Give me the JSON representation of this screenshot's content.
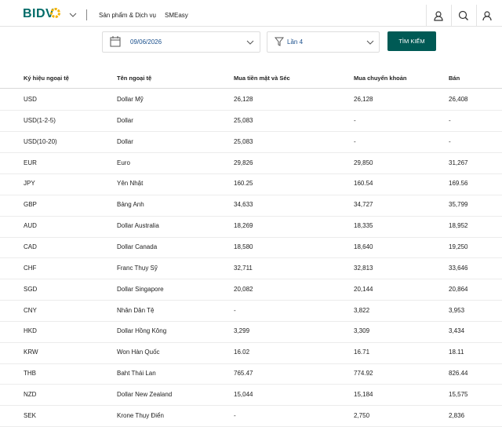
{
  "header": {
    "logo": "BIDV",
    "nav": [
      "Sản phẩm & Dịch vụ",
      "SMEasy"
    ]
  },
  "filters": {
    "date": "09/06/2026",
    "round": "Lần 4",
    "button": "TÌM KIẾM"
  },
  "table": {
    "columns": [
      "Ký hiệu ngoại tệ",
      "Tên ngoại tệ",
      "Mua tiền mặt và Séc",
      "Mua chuyển khoản",
      "Bán"
    ],
    "rows": [
      [
        "USD",
        "Dollar Mỹ",
        "26,128",
        "26,128",
        "26,408"
      ],
      [
        "USD(1-2-5)",
        "Dollar",
        "25,083",
        "-",
        "-"
      ],
      [
        "USD(10-20)",
        "Dollar",
        "25,083",
        "-",
        "-"
      ],
      [
        "EUR",
        "Euro",
        "29,826",
        "29,850",
        "31,267"
      ],
      [
        "JPY",
        "Yên Nhật",
        "160.25",
        "160.54",
        "169.56"
      ],
      [
        "GBP",
        "Bảng Anh",
        "34,633",
        "34,727",
        "35,799"
      ],
      [
        "AUD",
        "Dollar Australia",
        "18,269",
        "18,335",
        "18,952"
      ],
      [
        "CAD",
        "Dollar Canada",
        "18,580",
        "18,640",
        "19,250"
      ],
      [
        "CHF",
        "Franc Thụy Sỹ",
        "32,711",
        "32,813",
        "33,646"
      ],
      [
        "SGD",
        "Dollar Singapore",
        "20,082",
        "20,144",
        "20,864"
      ],
      [
        "CNY",
        "Nhân Dân Tệ",
        "-",
        "3,822",
        "3,953"
      ],
      [
        "HKD",
        "Dollar Hồng Kông",
        "3,299",
        "3,309",
        "3,434"
      ],
      [
        "KRW",
        "Won Hàn Quốc",
        "16.02",
        "16.71",
        "18.11"
      ],
      [
        "THB",
        "Baht Thái Lan",
        "765.47",
        "774.92",
        "826.44"
      ],
      [
        "NZD",
        "Dollar New Zealand",
        "15,044",
        "15,184",
        "15,575"
      ],
      [
        "SEK",
        "Krone Thụy Điển",
        "-",
        "2,750",
        "2,836"
      ]
    ]
  }
}
